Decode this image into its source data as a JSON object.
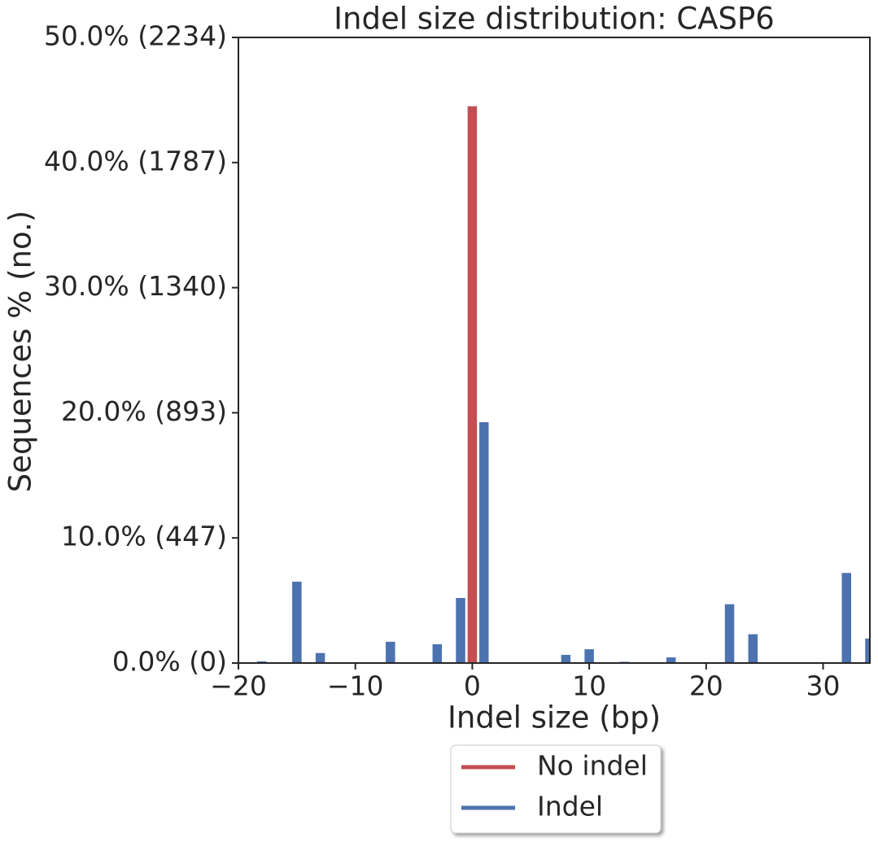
{
  "chart_data": {
    "type": "bar",
    "title": "Indel size distribution: CASP6",
    "x_label": "Indel size (bp)",
    "y_label": "Sequences % (no.)",
    "xlim": [
      -20,
      34
    ],
    "xticks": [
      {
        "value": -20,
        "label": "−20"
      },
      {
        "value": -10,
        "label": "−10"
      },
      0,
      10,
      20,
      30
    ],
    "ylim": [
      0,
      50
    ],
    "yticks": [
      {
        "value": 0,
        "label": "0.0% (0)"
      },
      {
        "value": 10,
        "label": "10.0% (447)"
      },
      {
        "value": 20,
        "label": "20.0% (893)"
      },
      {
        "value": 30,
        "label": "30.0% (1340)"
      },
      {
        "value": 40,
        "label": "40.0% (1787)"
      },
      {
        "value": 50,
        "label": "50.0% (2234)"
      }
    ],
    "series": [
      {
        "name": "No indel",
        "color": "#c44e52",
        "x": [
          0
        ],
        "values": [
          44.5
        ]
      },
      {
        "name": "Indel",
        "color": "#4c72b0",
        "x": [
          -18,
          -15,
          -13,
          -7,
          -3,
          -1,
          1,
          8,
          10,
          13,
          17,
          22,
          24,
          32,
          34
        ],
        "values": [
          0.13,
          6.5,
          0.8,
          1.7,
          1.5,
          5.2,
          19.25,
          0.65,
          1.1,
          0.1,
          0.45,
          4.7,
          2.3,
          7.2,
          1.95
        ]
      }
    ],
    "legend": "lower-center-outside"
  }
}
